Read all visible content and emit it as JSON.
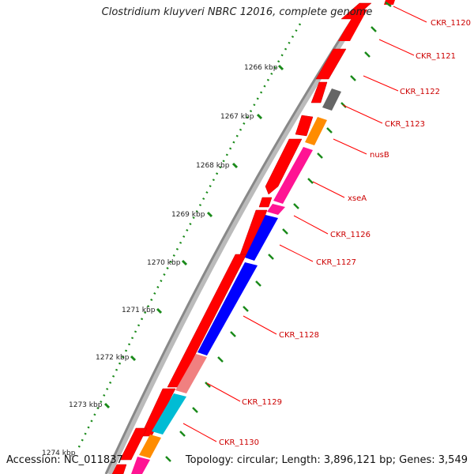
{
  "title": "Clostridium kluyveri NBRC 12016, complete genome",
  "footer": {
    "accession": "Accession: NC_011837",
    "summary": "Topology: circular; Length: 3,896,121 bp; Genes: 3,549"
  },
  "scale_labels": [
    "1266 kbp",
    "1267 kbp",
    "1268 kbp",
    "1269 kbp",
    "1270 kbp",
    "1271 kbp",
    "1272 kbp",
    "1273 kbp",
    "1274 kbp"
  ],
  "colors": {
    "cds_forward": "#ff0000",
    "backbone": "#888888",
    "dotted_track": "#1a8a1a",
    "tick": "#1a8a1a",
    "label_text": "#cc0000",
    "leader": "#ff0000"
  },
  "genes": [
    {
      "name": "CKR_1120",
      "color": "#ff0000",
      "track": "reverse"
    },
    {
      "name": "CKR_1121",
      "color": "#ff0000",
      "track": "reverse"
    },
    {
      "name": "CKR_1122",
      "color": "#ff0000",
      "track": "reverse"
    },
    {
      "name": "CKR_1123",
      "color": "#666666",
      "track": "reverse"
    },
    {
      "name": "nusB",
      "color": "#ff8c00",
      "track": "reverse"
    },
    {
      "name": "xseA",
      "color": "#ff1493",
      "track": "reverse"
    },
    {
      "name": "CKR_1126",
      "color": "#ff1493",
      "track": "reverse"
    },
    {
      "name": "CKR_1127",
      "color": "#0000ff",
      "track": "reverse"
    },
    {
      "name": "CKR_1128",
      "color": "#0000ff",
      "track": "reverse"
    },
    {
      "name": "CKR_1129",
      "color": "#f08080",
      "track": "reverse"
    },
    {
      "name": "CKR_1130",
      "color": "#00bcd4",
      "track": "reverse"
    }
  ]
}
